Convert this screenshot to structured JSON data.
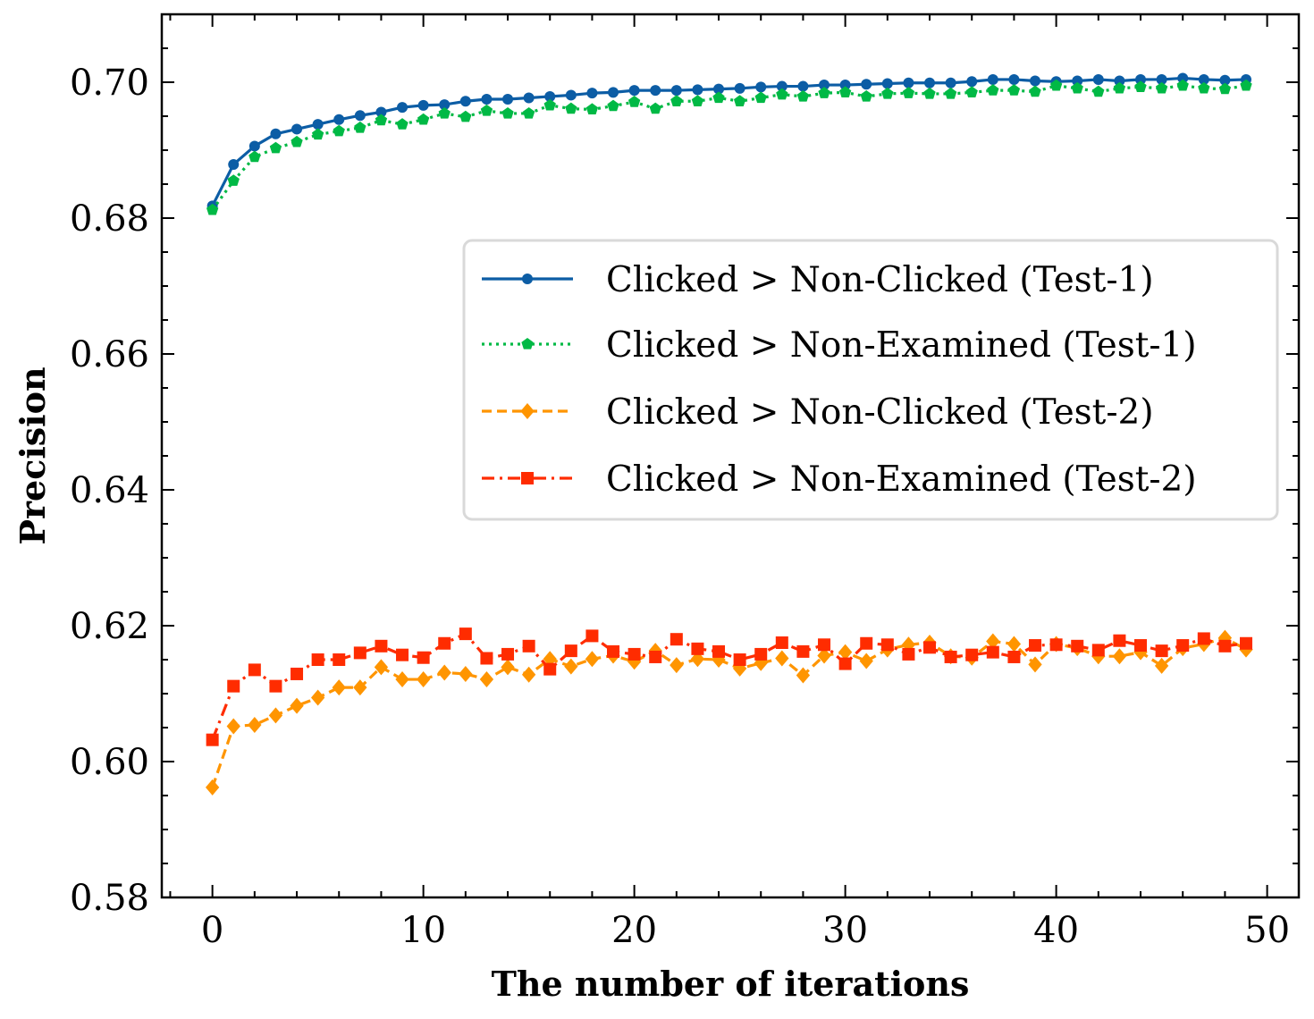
{
  "chart_data": {
    "type": "line",
    "xlabel": "The number of iterations",
    "ylabel": "Precision",
    "xlim": [
      -2.4,
      51.5
    ],
    "ylim": [
      0.58,
      0.71
    ],
    "xticks": [
      0,
      10,
      20,
      30,
      40,
      50
    ],
    "xtick_labels": [
      "0",
      "10",
      "20",
      "30",
      "40",
      "50"
    ],
    "yticks": [
      0.58,
      0.6,
      0.62,
      0.64,
      0.66,
      0.68,
      0.7
    ],
    "ytick_labels": [
      "0.58",
      "0.60",
      "0.62",
      "0.64",
      "0.66",
      "0.68",
      "0.70"
    ],
    "legend_position": "center-right",
    "x": [
      0,
      1,
      2,
      3,
      4,
      5,
      6,
      7,
      8,
      9,
      10,
      11,
      12,
      13,
      14,
      15,
      16,
      17,
      18,
      19,
      20,
      21,
      22,
      23,
      24,
      25,
      26,
      27,
      28,
      29,
      30,
      31,
      32,
      33,
      34,
      35,
      36,
      37,
      38,
      39,
      40,
      41,
      42,
      43,
      44,
      45,
      46,
      47,
      48,
      49
    ],
    "series": [
      {
        "name": "Clicked > Non-Clicked (Test-1)",
        "color": "#0C5DA5",
        "linestyle": "solid",
        "marker": "circle",
        "values": [
          0.6818,
          0.6879,
          0.6906,
          0.6924,
          0.6931,
          0.6938,
          0.6945,
          0.6951,
          0.6956,
          0.6963,
          0.6966,
          0.6967,
          0.6972,
          0.6975,
          0.6975,
          0.6977,
          0.6979,
          0.6981,
          0.6984,
          0.6985,
          0.6988,
          0.6988,
          0.6988,
          0.6989,
          0.699,
          0.6991,
          0.6993,
          0.6994,
          0.6994,
          0.6996,
          0.6996,
          0.6997,
          0.6998,
          0.6999,
          0.6999,
          0.6999,
          0.7001,
          0.7004,
          0.7004,
          0.7002,
          0.7001,
          0.7002,
          0.7004,
          0.7002,
          0.7004,
          0.7004,
          0.7006,
          0.7004,
          0.7003,
          0.7004
        ]
      },
      {
        "name": "Clicked > Non-Examined (Test-1)",
        "color": "#00B945",
        "linestyle": "dotted",
        "marker": "pentagon",
        "values": [
          0.6812,
          0.6855,
          0.689,
          0.6903,
          0.6912,
          0.6923,
          0.6928,
          0.6933,
          0.6944,
          0.6938,
          0.6945,
          0.6954,
          0.6949,
          0.6958,
          0.6954,
          0.6954,
          0.6966,
          0.6961,
          0.696,
          0.6965,
          0.6971,
          0.6961,
          0.6972,
          0.6972,
          0.6977,
          0.6972,
          0.6977,
          0.6982,
          0.6979,
          0.6984,
          0.6985,
          0.6979,
          0.6983,
          0.6984,
          0.6983,
          0.6983,
          0.6985,
          0.6988,
          0.6988,
          0.6986,
          0.6995,
          0.6991,
          0.6986,
          0.6991,
          0.6993,
          0.6991,
          0.6995,
          0.6991,
          0.699,
          0.6995
        ]
      },
      {
        "name": "Clicked > Non-Clicked (Test-2)",
        "color": "#FF9500",
        "linestyle": "dashed",
        "marker": "diamond",
        "values": [
          0.5962,
          0.6052,
          0.6054,
          0.6068,
          0.6082,
          0.6094,
          0.6109,
          0.6109,
          0.6139,
          0.6121,
          0.6121,
          0.6131,
          0.6129,
          0.6121,
          0.6139,
          0.6128,
          0.6151,
          0.614,
          0.6151,
          0.6156,
          0.6147,
          0.6163,
          0.6142,
          0.6151,
          0.615,
          0.6137,
          0.6145,
          0.6152,
          0.6127,
          0.6156,
          0.6161,
          0.6148,
          0.6165,
          0.6172,
          0.6175,
          0.6155,
          0.6153,
          0.6177,
          0.6173,
          0.6143,
          0.6173,
          0.6167,
          0.6155,
          0.6155,
          0.6161,
          0.6141,
          0.6167,
          0.6173,
          0.6182,
          0.6165
        ]
      },
      {
        "name": "Clicked > Non-Examined (Test-2)",
        "color": "#FF2C00",
        "linestyle": "dashdot",
        "marker": "square",
        "values": [
          0.6032,
          0.6111,
          0.6135,
          0.6111,
          0.6129,
          0.615,
          0.615,
          0.616,
          0.617,
          0.6157,
          0.6153,
          0.6174,
          0.6188,
          0.6152,
          0.6158,
          0.617,
          0.6136,
          0.6163,
          0.6185,
          0.6162,
          0.6158,
          0.6154,
          0.618,
          0.6166,
          0.6162,
          0.615,
          0.6158,
          0.6175,
          0.6162,
          0.6172,
          0.6144,
          0.6174,
          0.6172,
          0.6158,
          0.6168,
          0.6154,
          0.6157,
          0.6161,
          0.6154,
          0.6171,
          0.6172,
          0.617,
          0.6164,
          0.6178,
          0.6171,
          0.6163,
          0.6171,
          0.6181,
          0.617,
          0.6174
        ]
      }
    ]
  }
}
